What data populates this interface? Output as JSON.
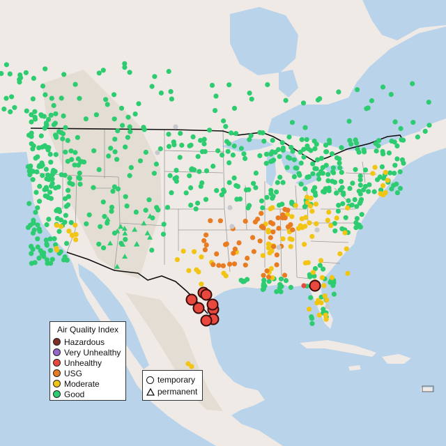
{
  "map": {
    "basemap": "light terrain basemap, water #b9d3ea, land #efeae5",
    "colors": {
      "water": "#b9d3ea",
      "land": "#efeae5",
      "highlands": "#e4ddd3",
      "state_border": "#9a9a9a",
      "national_border": "#111111"
    }
  },
  "legend": {
    "title": "Air Quality Index",
    "items": [
      {
        "label": "Hazardous",
        "color": "#7e2f25"
      },
      {
        "label": "Very Unhealthy",
        "color": "#9567c9"
      },
      {
        "label": "Unhealthy",
        "color": "#e9483f"
      },
      {
        "label": "USG",
        "color": "#e87c22"
      },
      {
        "label": "Moderate",
        "color": "#f2c413"
      },
      {
        "label": "Good",
        "color": "#2ecc71"
      }
    ],
    "no_data_color": "#c7c9cc"
  },
  "shape_legend": {
    "items": [
      {
        "label": "temporary",
        "icon": "circle-icon"
      },
      {
        "label": "permanent",
        "icon": "triangle-icon"
      }
    ]
  }
}
